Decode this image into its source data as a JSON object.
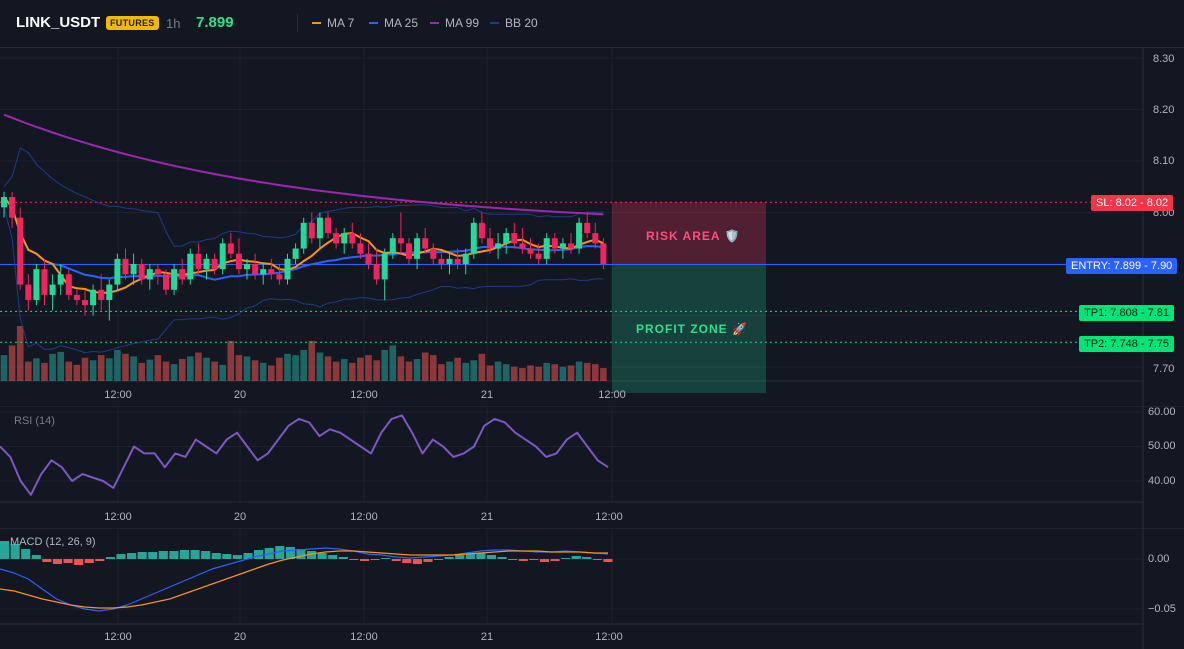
{
  "header": {
    "symbol": "LINK_USDT",
    "badge": "FUTURES",
    "timeframe": "1h",
    "last_price": "7.899",
    "indicators": [
      {
        "label": "MA 7",
        "color": "#f7931a"
      },
      {
        "label": "MA 25",
        "color": "#2962ff"
      },
      {
        "label": "MA 99",
        "color": "#9c27b0"
      },
      {
        "label": "BB 20",
        "color": "#1e3a8a"
      }
    ]
  },
  "price_pane": {
    "y_ticks": [
      "8.30",
      "8.20",
      "8.10",
      "8.00",
      "7.70"
    ],
    "levels": {
      "sl": {
        "tag": "SL: 8.02 - 8.02",
        "value": 8.02,
        "color": "#f23645"
      },
      "entry": {
        "tag": "ENTRY: 7.899 - 7.90",
        "value": 7.899,
        "color": "#2962ff"
      },
      "tp1": {
        "tag": "TP1: 7.808 - 7.81",
        "value": 7.808,
        "color": "#00e676"
      },
      "tp2": {
        "tag": "TP2: 7.748 - 7.75",
        "value": 7.748,
        "color": "#00e676"
      }
    },
    "risk_label": "RISK AREA 🛡️",
    "profit_label": "PROFIT ZONE 🚀"
  },
  "rsi_pane": {
    "title": "RSI (14)",
    "y_ticks": [
      "60.00",
      "50.00",
      "40.00"
    ]
  },
  "macd_pane": {
    "title": "MACD (12, 26, 9)",
    "y_ticks": [
      "0.00",
      "−0.05"
    ]
  },
  "x_axis_labels": [
    "12:00",
    "20",
    "12:00",
    "21",
    "12:00"
  ],
  "colors": {
    "up": "#26d99a",
    "down": "#f0245e",
    "bg": "#131722",
    "grid": "#1e2230"
  },
  "chart_data": {
    "type": "candlestick",
    "candles": [
      [
        8.01,
        8.04,
        7.99,
        8.03
      ],
      [
        8.03,
        8.04,
        7.97,
        7.99
      ],
      [
        7.99,
        8.01,
        7.85,
        7.86
      ],
      [
        7.86,
        7.88,
        7.81,
        7.83
      ],
      [
        7.83,
        7.9,
        7.82,
        7.89
      ],
      [
        7.89,
        7.91,
        7.82,
        7.84
      ],
      [
        7.84,
        7.88,
        7.81,
        7.86
      ],
      [
        7.86,
        7.9,
        7.84,
        7.88
      ],
      [
        7.88,
        7.89,
        7.83,
        7.84
      ],
      [
        7.84,
        7.85,
        7.82,
        7.83
      ],
      [
        7.83,
        7.85,
        7.8,
        7.82
      ],
      [
        7.82,
        7.86,
        7.8,
        7.85
      ],
      [
        7.85,
        7.88,
        7.81,
        7.83
      ],
      [
        7.83,
        7.87,
        7.79,
        7.86
      ],
      [
        7.86,
        7.92,
        7.85,
        7.91
      ],
      [
        7.91,
        7.93,
        7.87,
        7.88
      ],
      [
        7.88,
        7.92,
        7.86,
        7.9
      ],
      [
        7.9,
        7.91,
        7.86,
        7.87
      ],
      [
        7.87,
        7.9,
        7.85,
        7.89
      ],
      [
        7.89,
        7.9,
        7.86,
        7.88
      ],
      [
        7.88,
        7.89,
        7.84,
        7.85
      ],
      [
        7.85,
        7.9,
        7.84,
        7.89
      ],
      [
        7.89,
        7.91,
        7.86,
        7.87
      ],
      [
        7.87,
        7.93,
        7.86,
        7.92
      ],
      [
        7.92,
        7.94,
        7.88,
        7.89
      ],
      [
        7.89,
        7.92,
        7.87,
        7.91
      ],
      [
        7.91,
        7.92,
        7.88,
        7.89
      ],
      [
        7.89,
        7.95,
        7.88,
        7.94
      ],
      [
        7.94,
        7.96,
        7.91,
        7.92
      ],
      [
        7.92,
        7.95,
        7.88,
        7.89
      ],
      [
        7.89,
        7.91,
        7.87,
        7.9
      ],
      [
        7.9,
        7.92,
        7.87,
        7.88
      ],
      [
        7.88,
        7.9,
        7.86,
        7.89
      ],
      [
        7.89,
        7.91,
        7.87,
        7.88
      ],
      [
        7.88,
        7.9,
        7.86,
        7.87
      ],
      [
        7.87,
        7.92,
        7.86,
        7.91
      ],
      [
        7.91,
        7.94,
        7.9,
        7.93
      ],
      [
        7.93,
        7.99,
        7.92,
        7.98
      ],
      [
        7.98,
        8.0,
        7.94,
        7.95
      ],
      [
        7.95,
        8.0,
        7.93,
        7.99
      ],
      [
        7.99,
        8.0,
        7.95,
        7.96
      ],
      [
        7.96,
        7.97,
        7.93,
        7.94
      ],
      [
        7.94,
        7.97,
        7.92,
        7.96
      ],
      [
        7.96,
        7.98,
        7.93,
        7.94
      ],
      [
        7.94,
        7.96,
        7.91,
        7.92
      ],
      [
        7.92,
        7.94,
        7.89,
        7.9
      ],
      [
        7.9,
        7.93,
        7.86,
        7.87
      ],
      [
        7.87,
        7.93,
        7.83,
        7.92
      ],
      [
        7.92,
        7.96,
        7.91,
        7.95
      ],
      [
        7.95,
        8.0,
        7.92,
        7.94
      ],
      [
        7.94,
        7.95,
        7.9,
        7.91
      ],
      [
        7.91,
        7.96,
        7.89,
        7.95
      ],
      [
        7.95,
        7.97,
        7.92,
        7.93
      ],
      [
        7.93,
        7.94,
        7.9,
        7.91
      ],
      [
        7.91,
        7.92,
        7.89,
        7.9
      ],
      [
        7.9,
        7.92,
        7.88,
        7.91
      ],
      [
        7.91,
        7.93,
        7.89,
        7.9
      ],
      [
        7.9,
        7.93,
        7.88,
        7.92
      ],
      [
        7.92,
        7.99,
        7.91,
        7.98
      ],
      [
        7.98,
        8.0,
        7.94,
        7.95
      ],
      [
        7.95,
        7.97,
        7.92,
        7.93
      ],
      [
        7.93,
        7.96,
        7.91,
        7.94
      ],
      [
        7.94,
        7.97,
        7.92,
        7.96
      ],
      [
        7.96,
        7.98,
        7.93,
        7.94
      ],
      [
        7.94,
        7.97,
        7.92,
        7.93
      ],
      [
        7.93,
        7.95,
        7.91,
        7.92
      ],
      [
        7.92,
        7.94,
        7.9,
        7.91
      ],
      [
        7.91,
        7.96,
        7.9,
        7.95
      ],
      [
        7.95,
        7.96,
        7.92,
        7.93
      ],
      [
        7.93,
        7.95,
        7.91,
        7.94
      ],
      [
        7.94,
        7.96,
        7.92,
        7.93
      ],
      [
        7.93,
        7.99,
        7.92,
        7.98
      ],
      [
        7.98,
        8.0,
        7.95,
        7.96
      ],
      [
        7.96,
        7.98,
        7.93,
        7.94
      ],
      [
        7.94,
        7.95,
        7.89,
        7.9
      ]
    ],
    "volumes": [
      40,
      55,
      85,
      30,
      35,
      28,
      42,
      45,
      30,
      25,
      36,
      32,
      40,
      35,
      48,
      42,
      38,
      28,
      33,
      40,
      30,
      26,
      34,
      38,
      44,
      36,
      30,
      25,
      62,
      40,
      38,
      32,
      28,
      24,
      36,
      42,
      40,
      48,
      62,
      44,
      38,
      30,
      34,
      28,
      36,
      40,
      32,
      48,
      55,
      38,
      30,
      34,
      44,
      40,
      26,
      30,
      36,
      28,
      32,
      42,
      24,
      30,
      26,
      22,
      20,
      24,
      22,
      28,
      26,
      22,
      24,
      30,
      28,
      26,
      20
    ],
    "rsi": [
      50,
      47,
      40,
      36,
      42,
      46,
      44,
      40,
      42,
      41,
      40,
      38,
      44,
      50,
      48,
      48,
      44,
      48,
      47,
      52,
      50,
      48,
      52,
      54,
      50,
      46,
      48,
      52,
      56,
      58,
      57,
      53,
      55,
      54,
      52,
      50,
      48,
      54,
      58,
      59,
      54,
      48,
      52,
      50,
      47,
      48,
      50,
      56,
      58,
      57,
      54,
      52,
      50,
      47,
      48,
      52,
      54,
      50,
      46,
      44
    ],
    "macd_hist": [
      0.018,
      0.015,
      0.01,
      0.004,
      -0.003,
      -0.005,
      -0.004,
      -0.006,
      -0.004,
      -0.002,
      0.002,
      0.005,
      0.006,
      0.007,
      0.007,
      0.008,
      0.008,
      0.009,
      0.009,
      0.008,
      0.006,
      0.005,
      0.004,
      0.006,
      0.009,
      0.011,
      0.013,
      0.012,
      0.01,
      0.008,
      0.006,
      0.004,
      0.002,
      -0.001,
      -0.002,
      -0.001,
      0.001,
      -0.002,
      -0.004,
      -0.005,
      -0.003,
      -0.001,
      0.002,
      0.004,
      0.005,
      0.006,
      0.004,
      0.002,
      -0.001,
      -0.002,
      -0.001,
      -0.003,
      -0.002,
      0.001,
      0.003,
      0.002,
      -0.001,
      -0.003
    ],
    "macd_line": [
      -0.01,
      -0.014,
      -0.02,
      -0.03,
      -0.04,
      -0.046,
      -0.05,
      -0.052,
      -0.05,
      -0.046,
      -0.04,
      -0.034,
      -0.028,
      -0.022,
      -0.016,
      -0.01,
      -0.006,
      -0.002,
      0.002,
      0.005,
      0.008,
      0.009,
      0.01,
      0.011,
      0.01,
      0.008,
      0.005,
      0.004,
      0.002,
      0.001,
      0.002,
      0.003,
      0.004,
      0.006,
      0.008,
      0.009,
      0.009,
      0.008,
      0.007,
      0.007,
      0.008,
      0.007,
      0.006,
      0.005
    ],
    "signal_line": [
      -0.03,
      -0.032,
      -0.036,
      -0.04,
      -0.043,
      -0.046,
      -0.048,
      -0.049,
      -0.049,
      -0.048,
      -0.046,
      -0.043,
      -0.04,
      -0.035,
      -0.03,
      -0.025,
      -0.02,
      -0.015,
      -0.01,
      -0.005,
      -0.001,
      0.002,
      0.005,
      0.007,
      0.008,
      0.008,
      0.007,
      0.006,
      0.005,
      0.004,
      0.004,
      0.004,
      0.004,
      0.005,
      0.006,
      0.007,
      0.008,
      0.008,
      0.008,
      0.007,
      0.007,
      0.007,
      0.006,
      0.006
    ]
  }
}
